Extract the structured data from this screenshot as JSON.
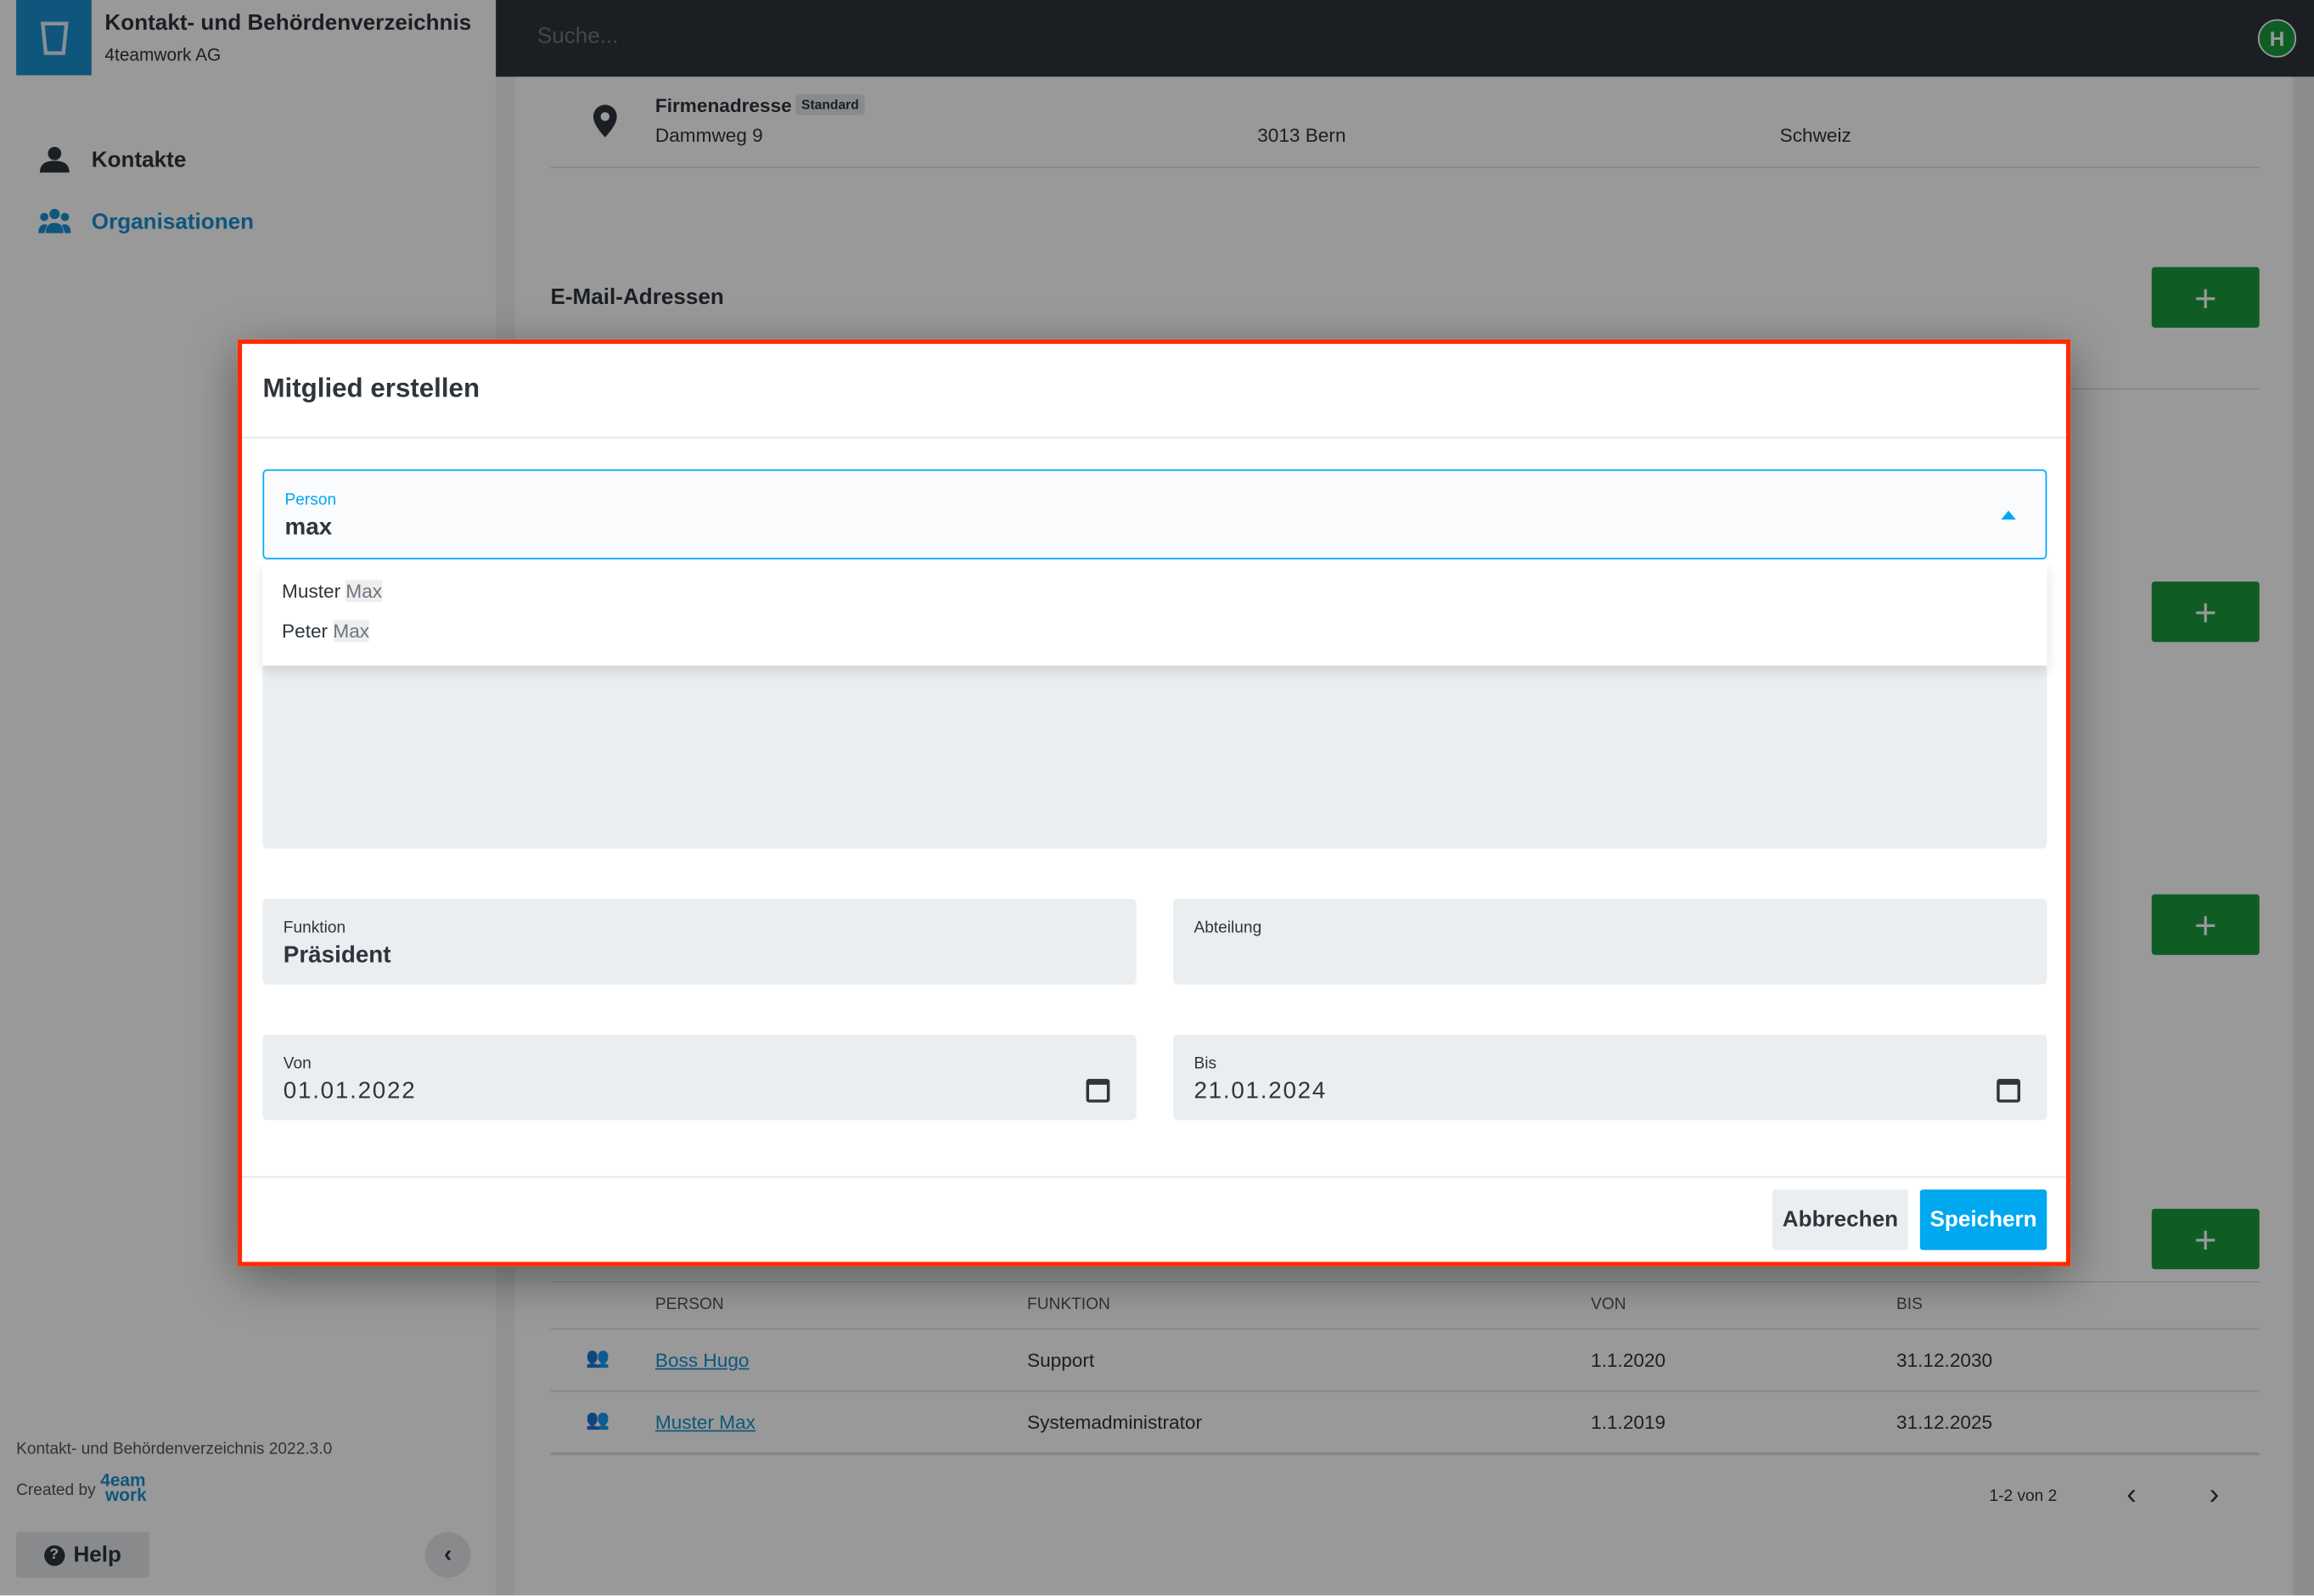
{
  "app": {
    "title": "Kontakt- und Behördenverzeichnis",
    "subtitle": "4teamwork AG",
    "version": "Kontakt- und Behördenverzeichnis 2022.3.0",
    "created_by": "Created by",
    "brand_logo": "4teamwork",
    "help": "Help",
    "accent": "#1a8fd1"
  },
  "sidebar": {
    "items": [
      {
        "label": "Kontakte",
        "icon": "person-icon",
        "active": false
      },
      {
        "label": "Organisationen",
        "icon": "group-icon",
        "active": true
      }
    ]
  },
  "topbar": {
    "search_placeholder": "Suche...",
    "avatar": "H"
  },
  "main": {
    "address": {
      "label": "Firmenadresse",
      "badge": "Standard",
      "street": "Dammweg 9",
      "city": "3013 Bern",
      "country": "Schweiz"
    },
    "email_section": "E-Mail-Adressen",
    "add_label": "+",
    "members": {
      "columns": [
        "PERSON",
        "FUNKTION",
        "VON",
        "BIS"
      ],
      "rows": [
        {
          "person": "Boss Hugo",
          "funktion": "Support",
          "von": "1.1.2020",
          "bis": "31.12.2030"
        },
        {
          "person": "Muster Max",
          "funktion": "Systemadministrator",
          "von": "1.1.2019",
          "bis": "31.12.2025"
        }
      ],
      "pagination": "1-2 von 2"
    }
  },
  "modal": {
    "title": "Mitglied erstellen",
    "person": {
      "label": "Person",
      "value": "max",
      "options": [
        {
          "first": "Muster ",
          "match": "Max"
        },
        {
          "first": "Peter ",
          "match": "Max"
        }
      ]
    },
    "funktion": {
      "label": "Funktion",
      "value": "Präsident"
    },
    "abteilung": {
      "label": "Abteilung",
      "value": ""
    },
    "von": {
      "label": "Von",
      "value": "01.01.2022"
    },
    "bis": {
      "label": "Bis",
      "value": "21.01.2024"
    },
    "cancel": "Abbrechen",
    "save": "Speichern",
    "primary_color": "#00a8f0",
    "highlight_border": "#ff2a00"
  }
}
